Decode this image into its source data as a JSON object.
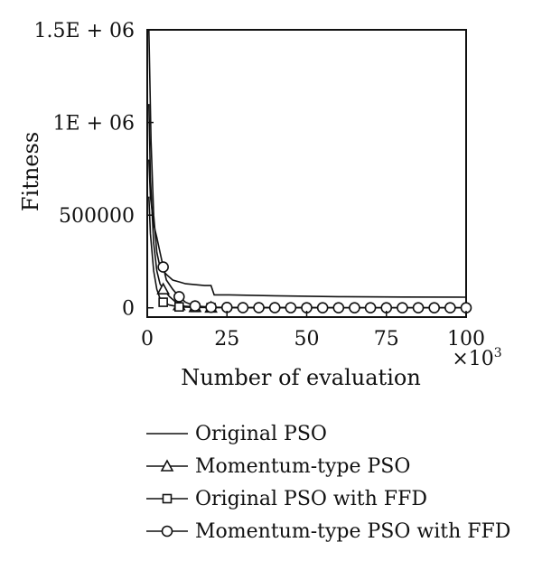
{
  "chart_data": {
    "type": "line",
    "xlabel": "Number of evaluation",
    "xmultiplier_label": "×10",
    "xmultiplier_exp": "3",
    "ylabel": "Fitness",
    "xlim": [
      0,
      100
    ],
    "ylim": [
      -50000,
      1500000
    ],
    "xticks": [
      "0",
      "25",
      "50",
      "75",
      "100"
    ],
    "xtick_values": [
      0,
      25,
      50,
      75,
      100
    ],
    "yticks": [
      {
        "label": "0",
        "value": 0
      },
      {
        "label": "500000",
        "value": 500000
      },
      {
        "label": "1E + 06",
        "value": 1000000
      },
      {
        "label": "1.5E + 06",
        "value": 1500000
      }
    ],
    "series": [
      {
        "name": "Original PSO",
        "marker": "none",
        "x": [
          0.5,
          1.2,
          2,
          3,
          4,
          6,
          8,
          10,
          12,
          15,
          18,
          20,
          21,
          25,
          40,
          60,
          80,
          100
        ],
        "y": [
          1500000,
          900000,
          500000,
          300000,
          220000,
          180000,
          150000,
          140000,
          130000,
          125000,
          120000,
          120000,
          70000,
          70000,
          65000,
          60000,
          58000,
          57000
        ]
      },
      {
        "name": "Momentum-type PSO",
        "marker": "triangle",
        "x": [
          0.5,
          1,
          2,
          3,
          4,
          5,
          7,
          9,
          10,
          12,
          15,
          20,
          30,
          50,
          75,
          100
        ],
        "y": [
          1100000,
          700000,
          350000,
          200000,
          130000,
          100000,
          60000,
          30000,
          15000,
          8000,
          5000,
          2000,
          1000,
          500,
          200,
          100
        ],
        "marker_x": [
          5,
          10,
          15,
          20
        ]
      },
      {
        "name": "Original PSO with FFD",
        "marker": "square",
        "x": [
          0.5,
          1,
          2,
          3,
          4,
          5,
          7,
          10,
          15,
          20,
          30,
          50,
          75,
          100
        ],
        "y": [
          600000,
          400000,
          200000,
          100000,
          50000,
          30000,
          15000,
          5000,
          2000,
          1000,
          500,
          200,
          100,
          50
        ],
        "marker_x": [
          5,
          10,
          15,
          20
        ]
      },
      {
        "name": "Momentum-type PSO with FFD",
        "marker": "circle",
        "x": [
          0.5,
          1,
          2,
          3,
          4,
          5,
          6,
          8,
          10,
          12,
          15,
          20,
          30,
          50,
          75,
          100
        ],
        "y": [
          800000,
          600000,
          450000,
          380000,
          300000,
          220000,
          150000,
          100000,
          60000,
          30000,
          10000,
          3000,
          1000,
          500,
          200,
          100
        ],
        "marker_x": [
          5,
          10,
          15,
          20,
          25,
          30,
          35,
          40,
          45,
          50,
          55,
          60,
          65,
          70,
          75,
          80,
          85,
          90,
          95,
          100
        ]
      }
    ]
  },
  "legend": {
    "items": [
      {
        "label": "Original PSO",
        "marker": "none"
      },
      {
        "label": "Momentum-type PSO",
        "marker": "triangle"
      },
      {
        "label": "Original PSO with FFD",
        "marker": "square"
      },
      {
        "label": "Momentum-type PSO with FFD",
        "marker": "circle"
      }
    ]
  }
}
